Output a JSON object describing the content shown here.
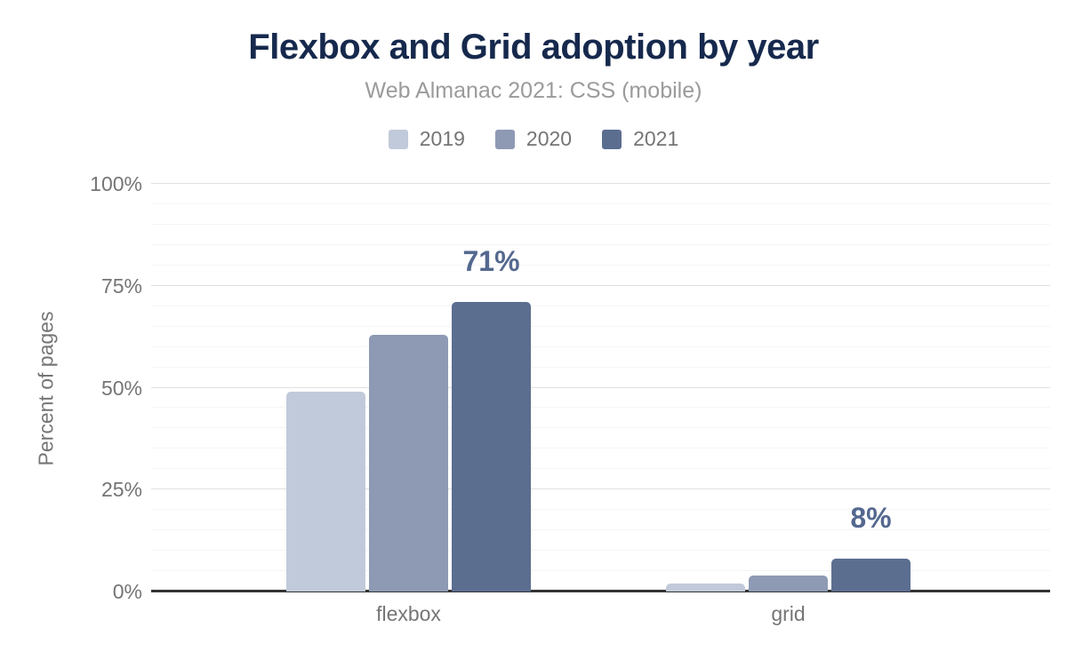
{
  "title": "Flexbox and Grid adoption by year",
  "subtitle": "Web Almanac 2021: CSS (mobile)",
  "y_axis_title": "Percent of pages",
  "colors": {
    "title": "#16294d",
    "subtitle": "#9b9b9b",
    "axis_text": "#757575",
    "value_label": "#54688f",
    "gridline_major": "#e0e0e0",
    "gridline_minor": "#f5f5f6",
    "axis_line": "#333333",
    "series_2019": "#c1cada",
    "series_2020": "#8e9ab4",
    "series_2021": "#5c6e90"
  },
  "chart_data": {
    "type": "bar",
    "title": "Flexbox and Grid adoption by year",
    "subtitle": "Web Almanac 2021: CSS (mobile)",
    "xlabel": "",
    "ylabel": "Percent of pages",
    "categories": [
      "flexbox",
      "grid"
    ],
    "series": [
      {
        "name": "2019",
        "color": "#c1cada",
        "values": [
          49,
          2
        ]
      },
      {
        "name": "2020",
        "color": "#8e9ab4",
        "values": [
          63,
          4
        ]
      },
      {
        "name": "2021",
        "color": "#5c6e90",
        "values": [
          71,
          8
        ]
      }
    ],
    "value_labels": [
      {
        "category": "flexbox",
        "series": "2021",
        "value": 71,
        "text": "71%"
      },
      {
        "category": "grid",
        "series": "2021",
        "value": 8,
        "text": "8%"
      }
    ],
    "ylim": [
      0,
      100
    ],
    "y_ticks": [
      {
        "pct": 0,
        "label": "0%"
      },
      {
        "pct": 25,
        "label": "25%"
      },
      {
        "pct": 50,
        "label": "50%"
      },
      {
        "pct": 75,
        "label": "75%"
      },
      {
        "pct": 100,
        "label": "100%"
      }
    ],
    "grid": {
      "minor_step_pct": 5,
      "major_step_pct": 25,
      "visible": true
    },
    "legend_position": "top"
  }
}
